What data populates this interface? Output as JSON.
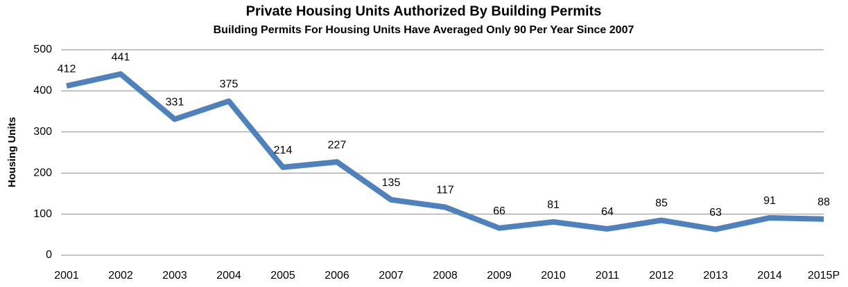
{
  "chart_data": {
    "type": "line",
    "title": "Private Housing Units Authorized By Building Permits",
    "subtitle": "Building Permits For Housing Units Have Averaged Only 90 Per Year Since 2007",
    "y_label": "Housing Units",
    "categories": [
      "2001",
      "2002",
      "2003",
      "2004",
      "2005",
      "2006",
      "2007",
      "2008",
      "2009",
      "2010",
      "2011",
      "2012",
      "2013",
      "2014",
      "2015P"
    ],
    "values": [
      412,
      441,
      331,
      375,
      214,
      227,
      135,
      117,
      66,
      81,
      64,
      85,
      63,
      91,
      88
    ],
    "color": "#4f81bd",
    "ylim": [
      0,
      500
    ],
    "yticks": [
      0,
      100,
      200,
      300,
      400,
      500
    ],
    "grid": true
  }
}
